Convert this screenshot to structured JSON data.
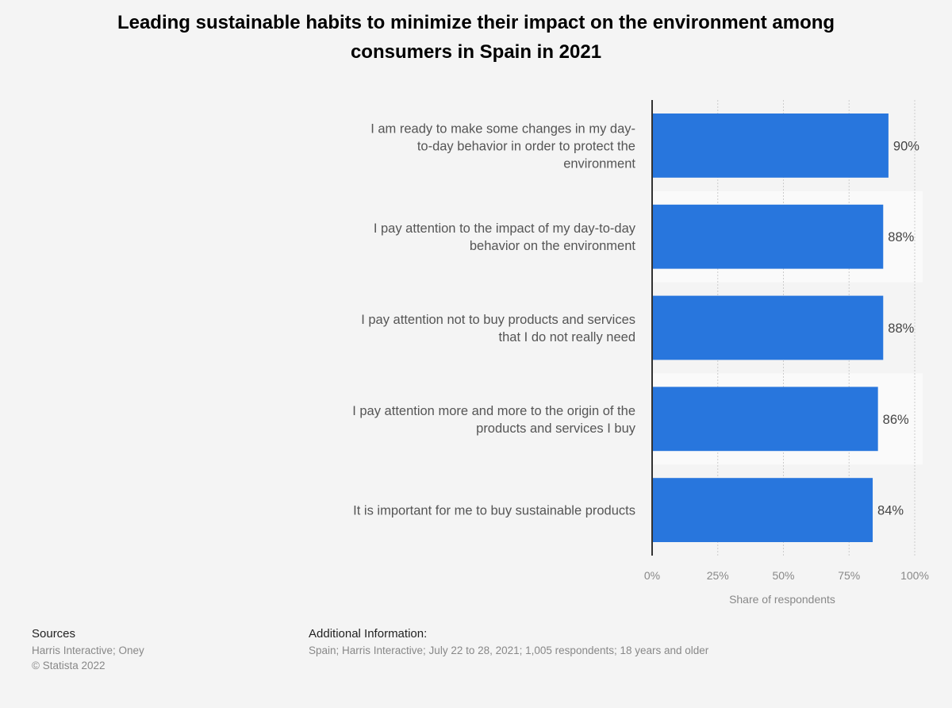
{
  "chart_data": {
    "type": "bar",
    "orientation": "horizontal",
    "title": "Leading sustainable habits to minimize their impact on the environment among consumers in Spain in 2021",
    "categories": [
      [
        "I am ready to make some changes in my day-",
        "to-day behavior in order to protect the",
        "environment"
      ],
      [
        "I pay attention to the impact of my day-to-day",
        "behavior on the environment"
      ],
      [
        "I pay attention not to buy products and services",
        "that I do not really need"
      ],
      [
        "I pay attention more and more to the origin of the",
        "products and services I buy"
      ],
      [
        "It is important for me to buy sustainable products"
      ]
    ],
    "values": [
      90,
      88,
      88,
      86,
      84
    ],
    "value_labels": [
      "90%",
      "88%",
      "88%",
      "86%",
      "84%"
    ],
    "xlabel": "Share of respondents",
    "ylabel": "",
    "xlim": [
      0,
      100
    ],
    "ticks": [
      0,
      25,
      50,
      75,
      100
    ],
    "tick_labels": [
      "0%",
      "25%",
      "50%",
      "75%",
      "100%"
    ],
    "grid": true,
    "bar_color": "#2876dd"
  },
  "footer": {
    "sources_label": "Sources",
    "sources": "Harris Interactive; Oney",
    "copyright": "© Statista 2022",
    "additional_label": "Additional Information:",
    "additional": "Spain; Harris Interactive; July 22 to 28, 2021; 1,005 respondents; 18 years and older"
  }
}
